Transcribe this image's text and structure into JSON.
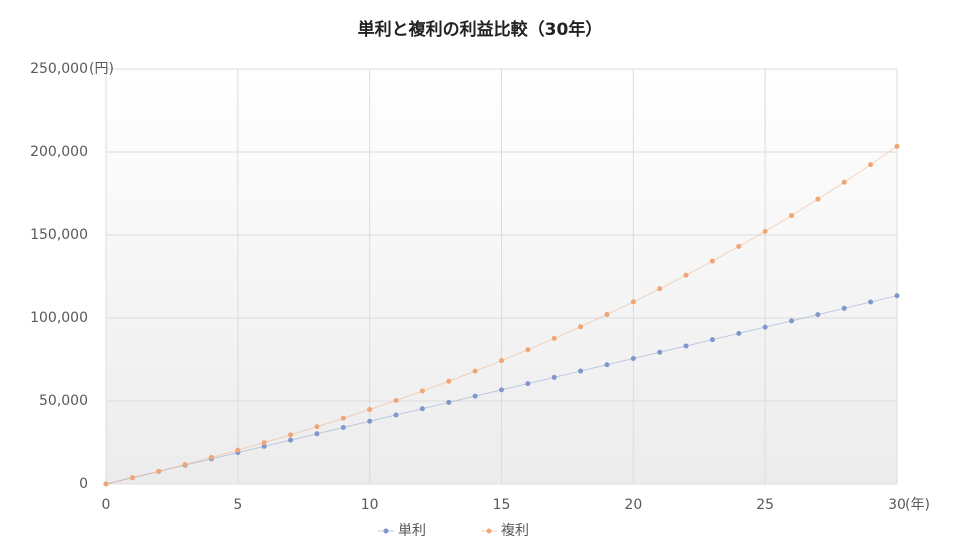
{
  "chart_data": {
    "type": "line",
    "title": "単利と複利の利益比較（30年）",
    "x": [
      0,
      1,
      2,
      3,
      4,
      5,
      6,
      7,
      8,
      9,
      10,
      11,
      12,
      13,
      14,
      15,
      16,
      17,
      18,
      19,
      20,
      21,
      22,
      23,
      24,
      25,
      26,
      27,
      28,
      29,
      30
    ],
    "series": [
      {
        "name": "単利",
        "color": "#7f97cb",
        "values": [
          0,
          3780,
          7560,
          11340,
          15120,
          18900,
          22680,
          26460,
          30240,
          34020,
          37800,
          41580,
          45360,
          49140,
          52920,
          56700,
          60480,
          64260,
          68040,
          71820,
          75600,
          79380,
          83160,
          86940,
          90720,
          94500,
          98280,
          102060,
          105840,
          109620,
          113400
        ]
      },
      {
        "name": "複利",
        "color": "#f0a674",
        "values": [
          0,
          3800,
          7600,
          11700,
          16000,
          20400,
          24900,
          29600,
          34500,
          39600,
          44900,
          50300,
          56000,
          61900,
          68000,
          74300,
          80900,
          87700,
          94700,
          102100,
          109700,
          117600,
          125800,
          134300,
          143100,
          152200,
          161700,
          171600,
          181800,
          192400,
          203400
        ]
      }
    ],
    "xlim": [
      0,
      30
    ],
    "xticks": [
      0,
      5,
      10,
      15,
      20,
      25,
      30
    ],
    "ylim": [
      0,
      250000
    ],
    "yticks": [
      0,
      {
        "value": 50000,
        "label": "50,000"
      },
      {
        "value": 100000,
        "label": "100,000"
      },
      {
        "value": 150000,
        "label": "150,000"
      },
      {
        "value": 200000,
        "label": "200,000"
      },
      {
        "value": 250000,
        "label": "250,000"
      }
    ],
    "y_unit": "(円)",
    "x_unit": "(年)",
    "grid": true,
    "legend": "bottom"
  }
}
